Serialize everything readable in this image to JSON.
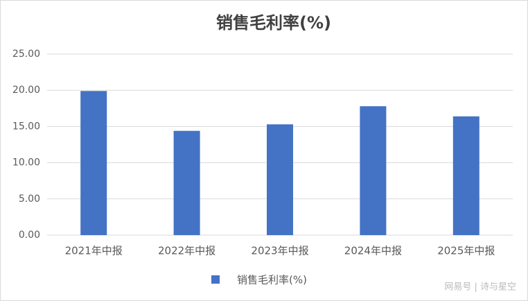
{
  "chart_data": {
    "type": "bar",
    "title": "销售毛利率(%)",
    "categories": [
      "2021年中报",
      "2022年中报",
      "2023年中报",
      "2024年中报",
      "2025年中报"
    ],
    "series": [
      {
        "name": "销售毛利率(%)",
        "color": "#4472c4",
        "values": [
          19.9,
          14.4,
          15.3,
          17.8,
          16.4
        ]
      }
    ],
    "ylim": [
      0,
      25
    ],
    "yticks": [
      {
        "value": 0,
        "label": "0.00"
      },
      {
        "value": 5,
        "label": "5.00"
      },
      {
        "value": 10,
        "label": "10.00"
      },
      {
        "value": 15,
        "label": "15.00"
      },
      {
        "value": 20,
        "label": "20.00"
      },
      {
        "value": 25,
        "label": "25.00"
      }
    ],
    "grid": true,
    "legend": "bottom",
    "watermark": "网易号 | 诗与星空"
  }
}
